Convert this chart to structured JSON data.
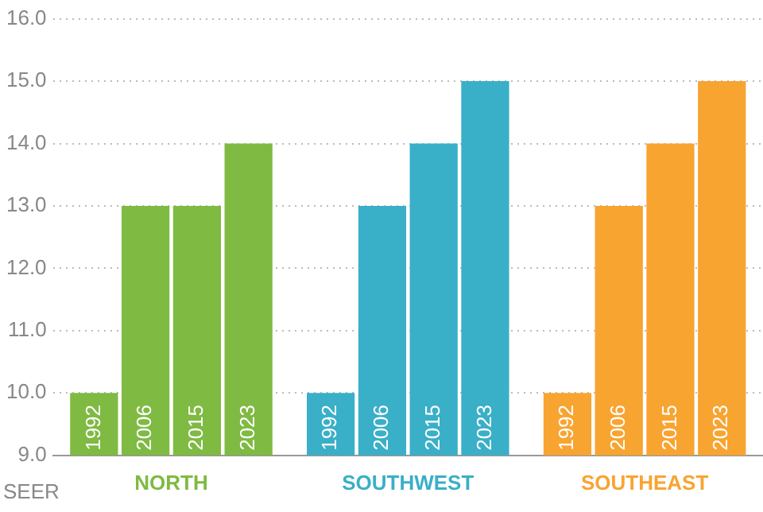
{
  "chart_data": {
    "type": "bar",
    "ylabel": "SEER",
    "categories": [
      "NORTH",
      "SOUTHWEST",
      "SOUTHEAST"
    ],
    "series": [
      {
        "name": "1992",
        "colors": [
          "#7fba42",
          "#3aafc8",
          "#f8a431"
        ],
        "values": [
          10,
          10,
          10
        ]
      },
      {
        "name": "2006",
        "colors": [
          "#7fba42",
          "#3aafc8",
          "#f8a431"
        ],
        "values": [
          13,
          13,
          13
        ]
      },
      {
        "name": "2015",
        "colors": [
          "#7fba42",
          "#3aafc8",
          "#f8a431"
        ],
        "values": [
          13,
          14,
          14
        ]
      },
      {
        "name": "2023",
        "colors": [
          "#7fba42",
          "#3aafc8",
          "#f8a431"
        ],
        "values": [
          14,
          15,
          15
        ]
      }
    ],
    "ylim": [
      9,
      16
    ],
    "yticks": [
      {
        "value": 9,
        "label": "9.0"
      },
      {
        "value": 10,
        "label": "10.0"
      },
      {
        "value": 11,
        "label": "11.0"
      },
      {
        "value": 12,
        "label": "12.0"
      },
      {
        "value": 13,
        "label": "13.0"
      },
      {
        "value": 14,
        "label": "14.0"
      },
      {
        "value": 15,
        "label": "15.0"
      },
      {
        "value": 16,
        "label": "16.0"
      }
    ],
    "grid": "y",
    "legend": false
  }
}
